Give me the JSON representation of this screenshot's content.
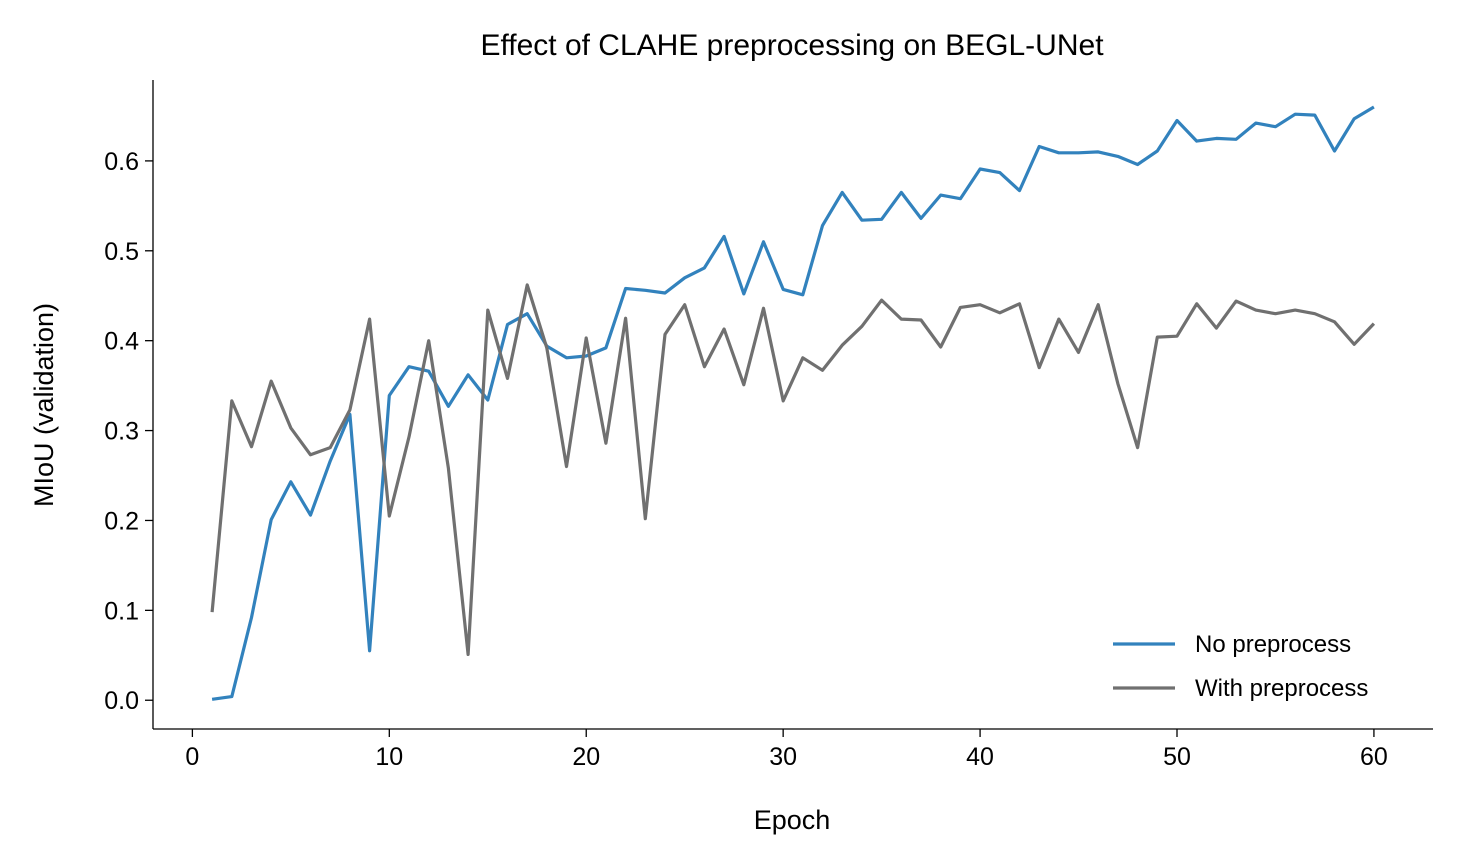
{
  "chart_data": {
    "type": "line",
    "title": "Effect of CLAHE preprocessing on BEGL-UNet",
    "xlabel": "Epoch",
    "ylabel": "MIoU (validation)",
    "xlim": [
      -2,
      63
    ],
    "ylim": [
      -0.032,
      0.69
    ],
    "xticks": [
      0,
      10,
      20,
      30,
      40,
      50,
      60
    ],
    "yticks": [
      0.0,
      0.1,
      0.2,
      0.3,
      0.4,
      0.5,
      0.6
    ],
    "xtick_labels": [
      "0",
      "10",
      "20",
      "30",
      "40",
      "50",
      "60"
    ],
    "ytick_labels": [
      "0.0",
      "0.1",
      "0.2",
      "0.3",
      "0.4",
      "0.5",
      "0.6"
    ],
    "grid": false,
    "legend_position": "lower-right",
    "x": [
      1,
      2,
      3,
      4,
      5,
      6,
      7,
      8,
      9,
      10,
      11,
      12,
      13,
      14,
      15,
      16,
      17,
      18,
      19,
      20,
      21,
      22,
      23,
      24,
      25,
      26,
      27,
      28,
      29,
      30,
      31,
      32,
      33,
      34,
      35,
      36,
      37,
      38,
      39,
      40,
      41,
      42,
      43,
      44,
      45,
      46,
      47,
      48,
      49,
      50,
      51,
      52,
      53,
      54,
      55,
      56,
      57,
      58,
      59,
      60
    ],
    "series": [
      {
        "name": "No preprocess",
        "color": "#3282bd",
        "values": [
          0.001,
          0.004,
          0.092,
          0.201,
          0.243,
          0.206,
          0.266,
          0.318,
          0.055,
          0.339,
          0.371,
          0.366,
          0.327,
          0.362,
          0.334,
          0.418,
          0.43,
          0.394,
          0.381,
          0.383,
          0.392,
          0.458,
          0.456,
          0.453,
          0.47,
          0.481,
          0.516,
          0.452,
          0.51,
          0.457,
          0.451,
          0.528,
          0.565,
          0.534,
          0.535,
          0.565,
          0.536,
          0.562,
          0.558,
          0.591,
          0.587,
          0.567,
          0.616,
          0.609,
          0.609,
          0.61,
          0.605,
          0.596,
          0.611,
          0.645,
          0.622,
          0.625,
          0.624,
          0.642,
          0.638,
          0.652,
          0.651,
          0.611,
          0.647,
          0.66
        ]
      },
      {
        "name": "With preprocess",
        "color": "#707070",
        "values": [
          0.098,
          0.333,
          0.282,
          0.355,
          0.303,
          0.273,
          0.281,
          0.323,
          0.424,
          0.205,
          0.293,
          0.4,
          0.258,
          0.051,
          0.434,
          0.358,
          0.462,
          0.392,
          0.26,
          0.403,
          0.286,
          0.425,
          0.202,
          0.407,
          0.44,
          0.371,
          0.413,
          0.351,
          0.436,
          0.333,
          0.381,
          0.367,
          0.395,
          0.416,
          0.445,
          0.424,
          0.423,
          0.393,
          0.437,
          0.44,
          0.431,
          0.441,
          0.37,
          0.424,
          0.387,
          0.44,
          0.352,
          0.281,
          0.404,
          0.405,
          0.441,
          0.414,
          0.444,
          0.434,
          0.43,
          0.434,
          0.43,
          0.421,
          0.396,
          0.419
        ]
      }
    ]
  }
}
